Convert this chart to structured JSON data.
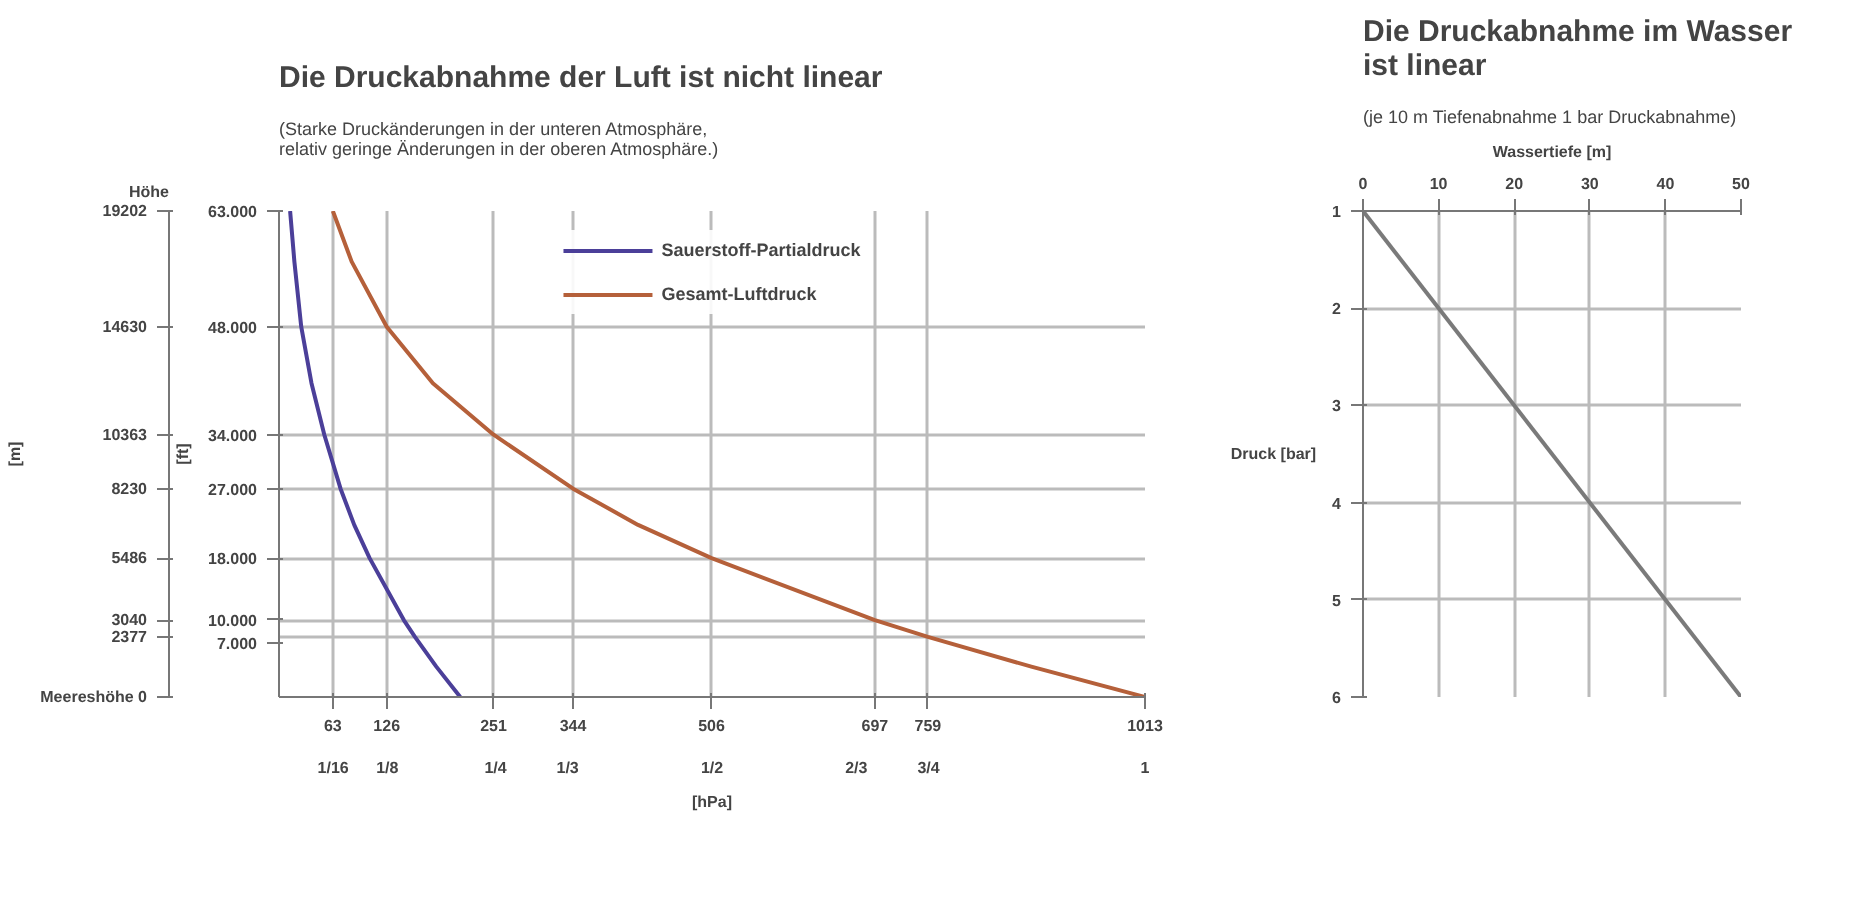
{
  "chart_data": [
    {
      "type": "line",
      "title": "Die Druckabnahme der Luft ist nicht linear",
      "subtitle": "(Starke Druckänderungen in der unteren Atmosphäre, relativ geringe Änderungen in der oberen Atmosphäre.)",
      "ylabel": "[m]",
      "y2label": "[ft]",
      "xlabel": "[hPa]",
      "annotations": [
        "Höhe"
      ],
      "series": [
        {
          "name": "Sauerstoff-Partialdruck",
          "color": "#4b3f99",
          "x": [
            212,
            184,
            159,
            146,
            106,
            88,
            72,
            53,
            38,
            26,
            18,
            13
          ],
          "values": [
            0,
            1200,
            2377,
            3040,
            5486,
            6800,
            8230,
            10363,
            12400,
            14630,
            17200,
            19202
          ]
        },
        {
          "name": "Gesamt-Luftdruck",
          "color": "#b5603a",
          "x": [
            1013,
            880,
            759,
            697,
            506,
            420,
            344,
            251,
            180,
            126,
            85,
            63
          ],
          "values": [
            0,
            1200,
            2377,
            3040,
            5486,
            6800,
            8230,
            10363,
            12400,
            14630,
            17200,
            19202
          ]
        }
      ],
      "xlim": [
        0,
        1013
      ],
      "xticks": [
        63,
        126,
        251,
        344,
        506,
        697,
        759,
        1013
      ],
      "x2lim": [
        0,
        1
      ],
      "x2ticks": [
        {
          "value": 0.0625,
          "label": "1/16"
        },
        {
          "value": 0.125,
          "label": "1/8"
        },
        {
          "value": 0.25,
          "label": "1/4"
        },
        {
          "value": 0.3333,
          "label": "1/3"
        },
        {
          "value": 0.5,
          "label": "1/2"
        },
        {
          "value": 0.6667,
          "label": "2/3"
        },
        {
          "value": 0.75,
          "label": "3/4"
        },
        1
      ],
      "ylim": [
        0,
        19202
      ],
      "yticks": [
        {
          "value": 0,
          "label": "Meereshöhe 0"
        },
        2377,
        3040,
        5486,
        8230,
        10363,
        14630,
        19202
      ],
      "y2lim": [
        0,
        63000
      ],
      "y2ticks": [
        {
          "value": 7000,
          "label": "7.000"
        },
        {
          "value": 10000,
          "label": "10.000"
        },
        {
          "value": 18000,
          "label": "18.000"
        },
        {
          "value": 27000,
          "label": "27.000"
        },
        {
          "value": 34000,
          "label": "34.000"
        },
        {
          "value": 48000,
          "label": "48.000"
        },
        {
          "value": 63000,
          "label": "63.000"
        }
      ],
      "grid": true,
      "legend": "top",
      "line_style": "solid"
    },
    {
      "type": "line",
      "title": "Die Druckabnahme im Wasser ist linear",
      "subtitle": "(je 10 m Tiefenabnahme 1 bar Druckabnahme)",
      "xlabel": "Wassertiefe [m]",
      "ylabel": "Druck [bar]",
      "series": [
        {
          "color": "#7a7a7a",
          "x": [
            0,
            50
          ],
          "values": [
            1,
            6
          ]
        }
      ],
      "xlim": [
        0,
        50
      ],
      "xticks": [
        0,
        10,
        20,
        30,
        40,
        50
      ],
      "ylim": [
        6,
        1
      ],
      "yticks": [
        1,
        2,
        3,
        4,
        5,
        6
      ],
      "grid": true,
      "line_style": "solid"
    }
  ]
}
